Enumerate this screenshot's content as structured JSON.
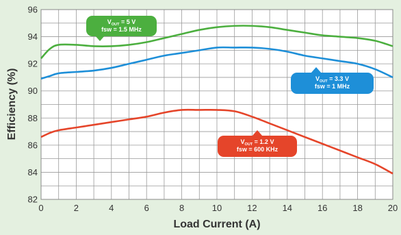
{
  "chart_data": {
    "type": "line",
    "xlabel": "Load Current (A)",
    "ylabel": "Efficiency (%)",
    "xlim": [
      0,
      20
    ],
    "ylim": [
      82,
      96
    ],
    "x_ticks": [
      0,
      2,
      4,
      6,
      8,
      10,
      12,
      14,
      16,
      18,
      20
    ],
    "y_ticks": [
      82,
      84,
      86,
      88,
      90,
      92,
      94,
      96
    ],
    "x_minor_step": 1,
    "y_minor_step": 1,
    "grid": true,
    "background": "#e4f0e0",
    "plot_background": "#ffffff",
    "grid_color": "#999999",
    "series": [
      {
        "id": "vout5",
        "color": "#4caf3f",
        "callout": {
          "lines": [
            {
              "main": "V",
              "sub": "OUT",
              "rest": " = 5 V"
            },
            {
              "main": "fsw = 1.5 MHz"
            }
          ]
        },
        "x": [
          0,
          0.5,
          1,
          2,
          3,
          4,
          5,
          6,
          7,
          8,
          9,
          10,
          11,
          12,
          13,
          14,
          15,
          16,
          17,
          18,
          19,
          20
        ],
        "y": [
          92.4,
          93.1,
          93.4,
          93.4,
          93.3,
          93.3,
          93.4,
          93.6,
          93.9,
          94.2,
          94.5,
          94.7,
          94.8,
          94.8,
          94.7,
          94.5,
          94.3,
          94.1,
          94.0,
          93.9,
          93.7,
          93.3
        ]
      },
      {
        "id": "vout33",
        "color": "#1e8fd8",
        "callout": {
          "lines": [
            {
              "main": "V",
              "sub": "OUT",
              "rest": " = 3.3 V"
            },
            {
              "main": "fsw = 1 MHz"
            }
          ]
        },
        "x": [
          0,
          0.5,
          1,
          2,
          3,
          4,
          5,
          6,
          7,
          8,
          9,
          10,
          11,
          12,
          13,
          14,
          15,
          16,
          17,
          18,
          19,
          20
        ],
        "y": [
          90.9,
          91.1,
          91.3,
          91.4,
          91.5,
          91.7,
          92.0,
          92.3,
          92.6,
          92.8,
          93.0,
          93.2,
          93.2,
          93.2,
          93.1,
          92.9,
          92.6,
          92.4,
          92.2,
          92.0,
          91.6,
          91.0
        ]
      },
      {
        "id": "vout12",
        "color": "#e5452a",
        "callout": {
          "lines": [
            {
              "main": "V",
              "sub": "OUT",
              "rest": " = 1.2 V"
            },
            {
              "main": "fsw = 600 KHz"
            }
          ]
        },
        "x": [
          0,
          0.5,
          1,
          2,
          3,
          4,
          5,
          6,
          7,
          8,
          9,
          10,
          11,
          12,
          13,
          14,
          15,
          16,
          17,
          18,
          19,
          20
        ],
        "y": [
          86.6,
          86.9,
          87.1,
          87.3,
          87.5,
          87.7,
          87.9,
          88.1,
          88.4,
          88.6,
          88.6,
          88.6,
          88.5,
          88.1,
          87.6,
          87.1,
          86.6,
          86.1,
          85.6,
          85.1,
          84.6,
          83.9
        ]
      }
    ]
  }
}
